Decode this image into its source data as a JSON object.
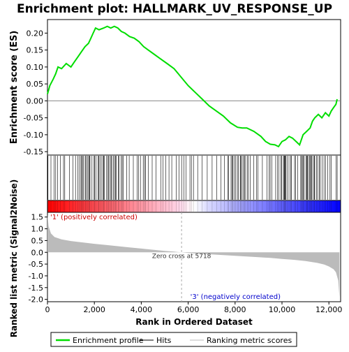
{
  "chart_data": {
    "type": "line",
    "title": "Enrichment plot: HALLMARK_UV_RESPONSE_UP",
    "xlabel": "Rank in Ordered Dataset",
    "ylabel_top": "Enrichment score (ES)",
    "ylabel_bottom": "Ranked list metric (Signal2Noise)",
    "x_range": [
      0,
      12500
    ],
    "x_ticks": [
      "0",
      "2,000",
      "4,000",
      "6,000",
      "8,000",
      "10,000",
      "12,000"
    ],
    "es_ylim": [
      -0.16,
      0.24
    ],
    "es_ticks": [
      "0.20",
      "0.15",
      "0.10",
      "0.05",
      "0.00",
      "-0.05",
      "-0.10",
      "-0.15"
    ],
    "metric_ylim": [
      -2.1,
      1.7
    ],
    "metric_ticks": [
      "1.5",
      "1.0",
      "0.5",
      "0.0",
      "-0.5",
      "-1.0",
      "-1.5",
      "-2.0"
    ],
    "enrichment_profile": {
      "x": [
        0,
        100,
        250,
        350,
        450,
        600,
        800,
        1000,
        1150,
        1300,
        1450,
        1600,
        1750,
        1850,
        1950,
        2050,
        2200,
        2400,
        2550,
        2700,
        2850,
        3000,
        3150,
        3300,
        3500,
        3700,
        3900,
        4100,
        4300,
        4500,
        4800,
        5100,
        5400,
        5700,
        6000,
        6300,
        6600,
        6900,
        7200,
        7500,
        7800,
        8100,
        8300,
        8500,
        8800,
        9100,
        9300,
        9500,
        9700,
        9850,
        10000,
        10150,
        10300,
        10450,
        10600,
        10750,
        10900,
        11050,
        11200,
        11300,
        11400,
        11550,
        11700,
        11850,
        12000,
        12100,
        12200,
        12300,
        12350
      ],
      "y": [
        0.02,
        0.045,
        0.065,
        0.08,
        0.1,
        0.095,
        0.11,
        0.1,
        0.115,
        0.13,
        0.145,
        0.16,
        0.17,
        0.185,
        0.2,
        0.215,
        0.21,
        0.215,
        0.22,
        0.215,
        0.22,
        0.215,
        0.205,
        0.2,
        0.19,
        0.185,
        0.175,
        0.16,
        0.15,
        0.14,
        0.125,
        0.11,
        0.095,
        0.07,
        0.045,
        0.025,
        0.005,
        -0.015,
        -0.03,
        -0.045,
        -0.065,
        -0.078,
        -0.08,
        -0.08,
        -0.09,
        -0.105,
        -0.12,
        -0.128,
        -0.13,
        -0.135,
        -0.12,
        -0.115,
        -0.105,
        -0.11,
        -0.12,
        -0.13,
        -0.1,
        -0.09,
        -0.08,
        -0.06,
        -0.05,
        -0.04,
        -0.05,
        -0.035,
        -0.045,
        -0.03,
        -0.02,
        -0.01,
        0.005
      ]
    },
    "hit_band": {
      "label": "Hits",
      "color": "#000000"
    },
    "rank_gradient_colors": [
      "#ff0000",
      "#ffffff",
      "#0000ff"
    ],
    "ranking_metric": {
      "x": [
        0,
        50,
        150,
        300,
        600,
        1000,
        1500,
        2000,
        2500,
        3000,
        3500,
        4000,
        4500,
        5000,
        5400,
        5718,
        6000,
        6500,
        7000,
        7500,
        8000,
        8500,
        9000,
        9500,
        10000,
        10500,
        11000,
        11500,
        11800,
        12000,
        12200,
        12300,
        12400,
        12450
      ],
      "y": [
        1.6,
        1.1,
        0.8,
        0.65,
        0.55,
        0.48,
        0.42,
        0.36,
        0.31,
        0.26,
        0.21,
        0.16,
        0.11,
        0.06,
        0.03,
        0.0,
        -0.03,
        -0.06,
        -0.09,
        -0.12,
        -0.15,
        -0.18,
        -0.21,
        -0.24,
        -0.28,
        -0.32,
        -0.37,
        -0.45,
        -0.52,
        -0.6,
        -0.72,
        -0.85,
        -1.2,
        -1.9
      ]
    },
    "zero_cross_label": "Zero cross at 5718",
    "zero_cross_x": 5718,
    "pos_label": "'1' (positively correlated)",
    "neg_label": "'3' (negatively correlated)",
    "colors": {
      "es_line": "#00dd00",
      "metric_fill": "#bbbbbb",
      "pos_text": "#cc0000",
      "neg_text": "#0000cc"
    },
    "legend": [
      {
        "name": "Enrichment profile",
        "color": "#00dd00"
      },
      {
        "name": "Hits",
        "color": "#000000"
      },
      {
        "name": "Ranking metric scores",
        "color": "#bbbbbb"
      }
    ],
    "legend_position": "bottom"
  }
}
